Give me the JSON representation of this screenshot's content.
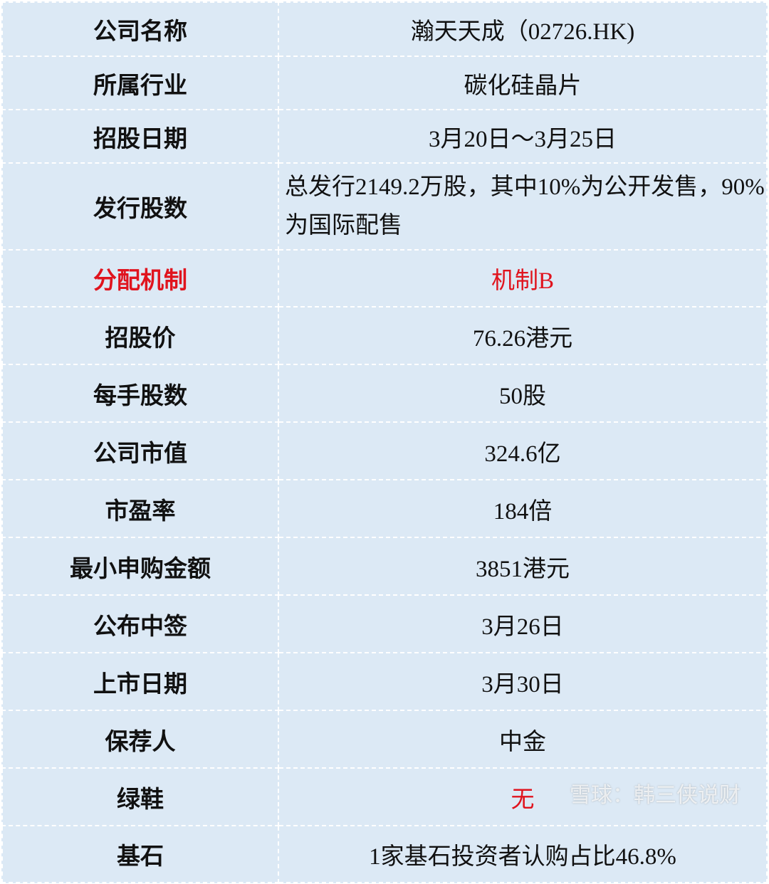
{
  "rows": [
    {
      "label": "公司名称",
      "value": "瀚天天成（02726.HK)"
    },
    {
      "label": "所属行业",
      "value": "碳化硅晶片"
    },
    {
      "label": "招股日期",
      "value": "3月20日～3月25日"
    },
    {
      "label": "发行股数",
      "value": "总发行2149.2万股，其中10%为公开发售，90%为国际配售"
    },
    {
      "label": "分配机制",
      "value": "机制B"
    },
    {
      "label": "招股价",
      "value": "76.26港元"
    },
    {
      "label": "每手股数",
      "value": "50股"
    },
    {
      "label": "公司市值",
      "value": "324.6亿"
    },
    {
      "label": "市盈率",
      "value": "184倍"
    },
    {
      "label": "最小申购金额",
      "value": "3851港元"
    },
    {
      "label": "公布中签",
      "value": "3月26日"
    },
    {
      "label": "上市日期",
      "value": "3月30日"
    },
    {
      "label": "保荐人",
      "value": "中金"
    },
    {
      "label": "绿鞋",
      "value": "无"
    },
    {
      "label": "基石",
      "value": "1家基石投资者认购占比46.8%"
    }
  ],
  "watermark": "雪球：韩三侠说财",
  "colors": {
    "highlight": "#e0141e",
    "background": "#dce9f5"
  }
}
